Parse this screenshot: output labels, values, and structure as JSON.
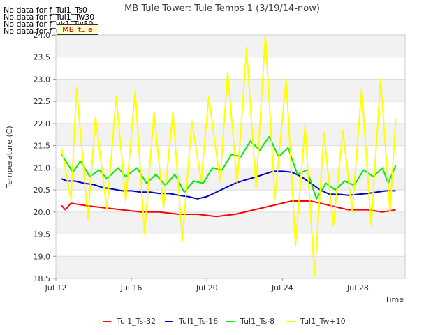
{
  "no_data_messages": [
    "No data for f_Tul1_Ts0",
    "No data for f_Tul1_Tw30",
    "No data for f_uk1_Tw50",
    "No data for f_uk1_Tw100"
  ],
  "badge_label": "MB_tule",
  "chart_data": {
    "type": "line",
    "title": "MB Tule Tower: Tule Temps 1 (3/19/14-now)",
    "xlabel": "Time",
    "ylabel": "Temperature (C)",
    "xlim": [
      12,
      30.5
    ],
    "ylim": [
      18.5,
      24.0
    ],
    "x_ticks": [
      12,
      16,
      20,
      24,
      28
    ],
    "x_tick_labels": [
      "Jul 12",
      "Jul 16",
      "Jul 20",
      "Jul 24",
      "Jul 28"
    ],
    "y_ticks": [
      18.5,
      19.0,
      19.5,
      20.0,
      20.5,
      21.0,
      21.5,
      22.0,
      22.5,
      23.0,
      23.5,
      24.0
    ],
    "y_tick_labels": [
      "18.5",
      "19.0",
      "19.5",
      "20.0",
      "20.5",
      "21.0",
      "21.5",
      "22.0",
      "22.5",
      "23.0",
      "23.5",
      "24.0"
    ],
    "grid": "horizontal bands",
    "legend_position": "bottom",
    "series": [
      {
        "name": "Tul1_Ts-32",
        "color": "#ff0000",
        "x": [
          12.3,
          12.5,
          12.8,
          13.5,
          14.5,
          15.5,
          16.5,
          17.5,
          18.5,
          19.5,
          20.5,
          21.5,
          22.5,
          23.5,
          24.5,
          25.5,
          26.5,
          27.5,
          28.5,
          29.3,
          30.0
        ],
        "y": [
          20.15,
          20.05,
          20.2,
          20.15,
          20.1,
          20.05,
          20.0,
          20.0,
          19.95,
          19.95,
          19.9,
          19.95,
          20.05,
          20.15,
          20.25,
          20.25,
          20.15,
          20.05,
          20.05,
          20.0,
          20.05
        ]
      },
      {
        "name": "Tul1_Ts-16",
        "color": "#0000cc",
        "x": [
          12.3,
          12.6,
          13.0,
          13.5,
          14.0,
          14.5,
          15.0,
          15.5,
          16.0,
          16.5,
          17.0,
          17.5,
          18.0,
          18.5,
          19.0,
          19.5,
          20.0,
          20.5,
          21.0,
          21.5,
          22.0,
          22.5,
          23.0,
          23.5,
          24.0,
          24.5,
          25.0,
          25.5,
          26.0,
          26.5,
          27.0,
          27.5,
          28.0,
          28.5,
          29.0,
          29.5,
          30.0
        ],
        "y": [
          20.75,
          20.7,
          20.7,
          20.65,
          20.62,
          20.55,
          20.52,
          20.48,
          20.48,
          20.45,
          20.45,
          20.42,
          20.42,
          20.38,
          20.35,
          20.3,
          20.35,
          20.45,
          20.55,
          20.65,
          20.72,
          20.78,
          20.85,
          20.92,
          20.92,
          20.9,
          20.8,
          20.65,
          20.5,
          20.4,
          20.4,
          20.38,
          20.4,
          20.42,
          20.45,
          20.48,
          20.48
        ]
      },
      {
        "name": "Tul1_Ts-8",
        "color": "#00ee00",
        "x": [
          12.3,
          12.6,
          12.9,
          13.3,
          13.8,
          14.3,
          14.7,
          15.3,
          15.7,
          16.3,
          16.8,
          17.3,
          17.8,
          18.3,
          18.8,
          19.3,
          19.8,
          20.3,
          20.8,
          21.3,
          21.8,
          22.3,
          22.8,
          23.3,
          23.8,
          24.3,
          24.8,
          25.3,
          25.8,
          26.3,
          26.8,
          27.3,
          27.8,
          28.3,
          28.8,
          29.3,
          29.6,
          30.0
        ],
        "y": [
          21.3,
          21.1,
          20.9,
          21.15,
          20.8,
          20.95,
          20.75,
          21.0,
          20.8,
          21.0,
          20.65,
          20.85,
          20.6,
          20.85,
          20.45,
          20.7,
          20.65,
          21.0,
          20.95,
          21.3,
          21.25,
          21.6,
          21.4,
          21.7,
          21.25,
          21.45,
          20.85,
          20.95,
          20.3,
          20.65,
          20.5,
          20.7,
          20.6,
          20.95,
          20.8,
          21.0,
          20.65,
          21.05
        ]
      },
      {
        "name": "Tul1_Tw+10",
        "color": "#ffff00",
        "x": [
          12.3,
          12.8,
          13.1,
          13.7,
          14.1,
          14.7,
          15.2,
          15.7,
          16.2,
          16.7,
          17.2,
          17.7,
          18.2,
          18.7,
          19.2,
          19.7,
          20.1,
          20.7,
          21.1,
          21.6,
          22.1,
          22.6,
          23.1,
          23.6,
          24.2,
          24.7,
          25.2,
          25.7,
          26.2,
          26.7,
          27.2,
          27.7,
          28.2,
          28.7,
          29.2,
          29.7,
          30.0
        ],
        "y": [
          21.45,
          20.3,
          22.8,
          19.85,
          22.15,
          20.05,
          22.6,
          20.25,
          22.75,
          19.5,
          22.25,
          20.1,
          22.25,
          19.35,
          22.05,
          20.7,
          22.6,
          20.7,
          23.15,
          20.65,
          23.7,
          20.55,
          24.0,
          20.3,
          23.0,
          19.25,
          21.95,
          18.55,
          21.8,
          19.7,
          21.85,
          20.0,
          22.8,
          19.7,
          23.0,
          20.0,
          22.1
        ]
      }
    ]
  }
}
